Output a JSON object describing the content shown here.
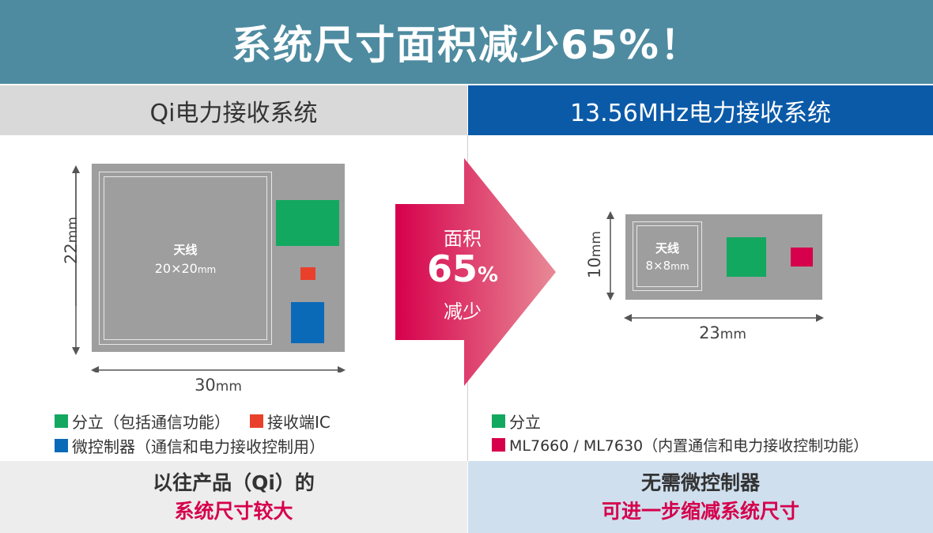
{
  "banner": {
    "title": "系统尺寸面积减少65%！"
  },
  "left": {
    "header": "Qi电力接收系统",
    "antenna": {
      "label": "天线",
      "size": "20×20",
      "unit": "mm"
    },
    "height_label": {
      "value": "22",
      "unit": "mm"
    },
    "width_label": {
      "value": "30",
      "unit": "mm"
    },
    "legend": [
      {
        "label": "分立（包括通信功能）",
        "color": "#13a860"
      },
      {
        "label": "接收端IC",
        "color": "#e9402b"
      },
      {
        "label": "微控制器（通信和电力接收控制用）",
        "color": "#0b6ab8"
      }
    ],
    "footer": {
      "line1": "以往产品（Qi）的",
      "line2": "系统尺寸较大"
    }
  },
  "arrow": {
    "line1": "面积",
    "value": "65",
    "unit": "%",
    "line3": "减少"
  },
  "right": {
    "header": "13.56MHz电力接收系统",
    "antenna": {
      "label": "天线",
      "size": "8×8",
      "unit": "mm"
    },
    "height_label": {
      "value": "10",
      "unit": "mm"
    },
    "width_label": {
      "value": "23",
      "unit": "mm"
    },
    "legend": [
      {
        "label": "分立",
        "color": "#13a860"
      },
      {
        "label": "ML7660 / ML7630（内置通信和电力接收控制功能）",
        "color": "#d6004c"
      }
    ],
    "footer": {
      "line1": "无需微控制器",
      "line2": "可进一步缩减系统尺寸"
    }
  },
  "colors": {
    "banner": "#4e8ba0",
    "right_header": "#0b5aa8",
    "accent_pink": "#d6004c",
    "board": "#9e9e9e"
  }
}
